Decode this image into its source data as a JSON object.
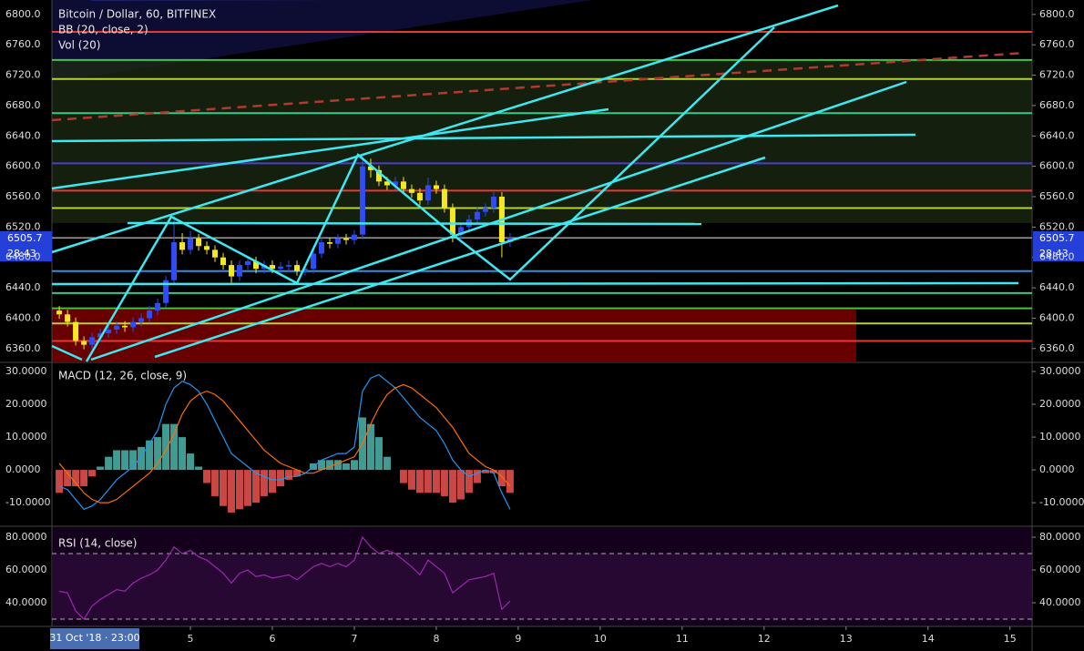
{
  "chart_data": [
    {
      "type": "candlestick",
      "title": "Bitcoin / Dollar, 60, BITFINEX",
      "indicators": [
        "BB (20, close, 2)",
        "Vol (20)"
      ],
      "up_color": "#2f4cf5",
      "down_color": "#f5e820",
      "xlim": [
        3.31,
        15.27
      ],
      "ylim": [
        6343,
        6819
      ],
      "yticks": [
        {
          "value": 6360,
          "label": "6360.0"
        },
        {
          "value": 6400,
          "label": "6400.0"
        },
        {
          "value": 6440,
          "label": "6440.0"
        },
        {
          "value": 6480,
          "label": "6480.0"
        },
        {
          "value": 6520,
          "label": "6520.0"
        },
        {
          "value": 6560,
          "label": "6560.0"
        },
        {
          "value": 6600,
          "label": "6600.0"
        },
        {
          "value": 6640,
          "label": "6640.0"
        },
        {
          "value": 6680,
          "label": "6680.0"
        },
        {
          "value": 6720,
          "label": "6720.0"
        },
        {
          "value": 6760,
          "label": "6760.0"
        },
        {
          "value": 6800,
          "label": "6800.0"
        }
      ],
      "x": [
        3.4,
        3.5,
        3.6,
        3.7,
        3.8,
        3.9,
        4.0,
        4.1,
        4.2,
        4.3,
        4.4,
        4.5,
        4.6,
        4.7,
        4.8,
        4.9,
        5.0,
        5.1,
        5.2,
        5.3,
        5.4,
        5.5,
        5.6,
        5.7,
        5.8,
        5.9,
        6.0,
        6.1,
        6.2,
        6.3,
        6.4,
        6.5,
        6.6,
        6.7,
        6.8,
        6.9,
        7.0,
        7.1,
        7.2,
        7.3,
        7.4,
        7.5,
        7.6,
        7.7,
        7.8,
        7.9,
        8.0,
        8.1,
        8.2,
        8.3,
        8.4,
        8.5,
        8.6,
        8.7,
        8.8,
        8.9
      ],
      "open": [
        6410,
        6405,
        6395,
        6370,
        6365,
        6375,
        6380,
        6385,
        6390,
        6388,
        6395,
        6400,
        6410,
        6420,
        6450,
        6500,
        6490,
        6505,
        6495,
        6490,
        6480,
        6470,
        6455,
        6470,
        6475,
        6465,
        6470,
        6465,
        6468,
        6470,
        6462,
        6465,
        6485,
        6500,
        6498,
        6505,
        6503,
        6510,
        6600,
        6595,
        6580,
        6575,
        6580,
        6570,
        6565,
        6555,
        6575,
        6570,
        6545,
        6510,
        6520,
        6530,
        6540,
        6545,
        6560,
        6500
      ],
      "high": [
        6416,
        6411,
        6401,
        6376,
        6381,
        6386,
        6391,
        6396,
        6396,
        6401,
        6406,
        6416,
        6426,
        6456,
        6535,
        6512,
        6515,
        6511,
        6501,
        6496,
        6486,
        6476,
        6476,
        6481,
        6481,
        6476,
        6476,
        6474,
        6476,
        6476,
        6471,
        6491,
        6506,
        6506,
        6511,
        6511,
        6516,
        6615,
        6610,
        6601,
        6586,
        6586,
        6586,
        6576,
        6571,
        6585,
        6581,
        6576,
        6551,
        6526,
        6536,
        6546,
        6551,
        6566,
        6566,
        6512
      ],
      "low": [
        6399,
        6389,
        6364,
        6359,
        6359,
        6369,
        6374,
        6379,
        6382,
        6382,
        6389,
        6394,
        6404,
        6414,
        6444,
        6484,
        6484,
        6489,
        6484,
        6474,
        6464,
        6445,
        6449,
        6464,
        6459,
        6459,
        6459,
        6459,
        6462,
        6456,
        6456,
        6459,
        6479,
        6492,
        6492,
        6497,
        6497,
        6504,
        6585,
        6574,
        6569,
        6569,
        6564,
        6559,
        6549,
        6549,
        6564,
        6539,
        6500,
        6504,
        6514,
        6524,
        6534,
        6539,
        6480,
        6494
      ],
      "close": [
        6405,
        6395,
        6370,
        6365,
        6375,
        6380,
        6385,
        6390,
        6388,
        6395,
        6400,
        6410,
        6420,
        6450,
        6500,
        6490,
        6505,
        6495,
        6490,
        6480,
        6470,
        6455,
        6470,
        6475,
        6465,
        6470,
        6465,
        6468,
        6470,
        6462,
        6465,
        6485,
        6500,
        6498,
        6505,
        6503,
        6510,
        6600,
        6595,
        6580,
        6575,
        6580,
        6570,
        6565,
        6555,
        6575,
        6570,
        6545,
        6510,
        6520,
        6530,
        6540,
        6545,
        6560,
        6500,
        6505.7
      ],
      "levels": [
        {
          "value": 6777,
          "color": "#e53935"
        },
        {
          "value": 6740,
          "color": "#43c443"
        },
        {
          "value": 6715,
          "color": "#b5d334"
        },
        {
          "value": 6670,
          "color": "#35c98a"
        },
        {
          "value": 6604,
          "color": "#4a3fd0"
        },
        {
          "value": 6568,
          "color": "#e53935"
        },
        {
          "value": 6545,
          "color": "#b5d334"
        },
        {
          "value": 6462,
          "color": "#2f8fe0"
        },
        {
          "value": 6433,
          "color": "#35c98a"
        },
        {
          "value": 6413,
          "color": "#43c443"
        },
        {
          "value": 6393,
          "color": "#b5d334"
        },
        {
          "value": 6370,
          "color": "#e53935"
        }
      ],
      "last_price": 6505.7,
      "countdown": "28:43"
    },
    {
      "type": "macd",
      "title": "MACD (12, 26, close, 9)",
      "xlim": [
        3.31,
        15.27
      ],
      "ylim": [
        -16.9,
        32.5
      ],
      "yticks": [
        {
          "value": -10,
          "label": "-10.0000"
        },
        {
          "value": 0,
          "label": "0.0000"
        },
        {
          "value": 10,
          "label": "10.0000"
        },
        {
          "value": 20,
          "label": "20.0000"
        },
        {
          "value": 30,
          "label": "30.0000"
        }
      ],
      "x": [
        3.4,
        3.5,
        3.6,
        3.7,
        3.8,
        3.9,
        4.0,
        4.1,
        4.2,
        4.3,
        4.4,
        4.5,
        4.6,
        4.7,
        4.8,
        4.9,
        5.0,
        5.1,
        5.2,
        5.3,
        5.4,
        5.5,
        5.6,
        5.7,
        5.8,
        5.9,
        6.0,
        6.1,
        6.2,
        6.3,
        6.4,
        6.5,
        6.6,
        6.7,
        6.8,
        6.9,
        7.0,
        7.1,
        7.2,
        7.3,
        7.4,
        7.5,
        7.6,
        7.7,
        7.8,
        7.9,
        8.0,
        8.1,
        8.2,
        8.3,
        8.4,
        8.5,
        8.6,
        8.7,
        8.8,
        8.9
      ],
      "macd": {
        "color": "#2196f3",
        "values": [
          -5,
          -6,
          -9,
          -12,
          -11,
          -9,
          -6,
          -3,
          -1,
          1,
          4,
          8,
          12,
          20,
          25,
          27,
          26,
          24,
          20,
          15,
          10,
          5,
          3,
          1,
          -1,
          -2,
          -3,
          -3,
          -2,
          -2,
          -1,
          1,
          3,
          4,
          5,
          5,
          7,
          24,
          28,
          29,
          27,
          25,
          22,
          19,
          16,
          14,
          12,
          8,
          3,
          0,
          -2,
          -1,
          0,
          -1,
          -7,
          -12
        ]
      },
      "signal": {
        "color": "#ff6d00",
        "values": [
          2,
          -1,
          -4,
          -7,
          -9,
          -10,
          -10,
          -9,
          -7,
          -5,
          -3,
          -1,
          2,
          6,
          11,
          17,
          21,
          23,
          24,
          23,
          21,
          18,
          15,
          12,
          9,
          6,
          4,
          2,
          1,
          0,
          -1,
          -1,
          0,
          1,
          2,
          3,
          4,
          8,
          14,
          19,
          23,
          25,
          26,
          25,
          23,
          21,
          19,
          16,
          13,
          9,
          5,
          3,
          1,
          0,
          -2,
          -5
        ]
      },
      "histogram": {
        "color": "#4db6ac",
        "negative_color": "#ef5350",
        "values": [
          -7,
          -5,
          -5,
          -5,
          -2,
          1,
          4,
          6,
          6,
          6,
          7,
          9,
          10,
          14,
          14,
          10,
          5,
          1,
          -4,
          -8,
          -11,
          -13,
          -12,
          -11,
          -10,
          -8,
          -7,
          -5,
          -3,
          -2,
          0,
          2,
          3,
          3,
          3,
          2,
          3,
          16,
          14,
          10,
          4,
          0,
          -4,
          -6,
          -7,
          -7,
          -7,
          -8,
          -10,
          -9,
          -7,
          -4,
          -1,
          -1,
          -5,
          -7
        ]
      }
    },
    {
      "type": "rsi",
      "title": "RSI (14, close)",
      "color": "#9c27b0",
      "xlim": [
        3.31,
        15.27
      ],
      "ylim": [
        25.56,
        86.1
      ],
      "yticks": [
        {
          "value": 40,
          "label": "40.0000"
        },
        {
          "value": 60,
          "label": "60.0000"
        },
        {
          "value": 80,
          "label": "80.0000"
        }
      ],
      "upper_band": 70,
      "lower_band": 30,
      "xticks": [
        5,
        6,
        7,
        8,
        9,
        10,
        11,
        12,
        13,
        14,
        15
      ],
      "x": [
        3.4,
        3.5,
        3.6,
        3.7,
        3.8,
        3.9,
        4.0,
        4.1,
        4.2,
        4.3,
        4.4,
        4.5,
        4.6,
        4.7,
        4.8,
        4.9,
        5.0,
        5.1,
        5.2,
        5.3,
        5.4,
        5.5,
        5.6,
        5.7,
        5.8,
        5.9,
        6.0,
        6.1,
        6.2,
        6.3,
        6.4,
        6.5,
        6.6,
        6.7,
        6.8,
        6.9,
        7.0,
        7.1,
        7.2,
        7.3,
        7.4,
        7.5,
        7.6,
        7.7,
        7.8,
        7.9,
        8.0,
        8.1,
        8.2,
        8.3,
        8.4,
        8.5,
        8.6,
        8.7,
        8.8,
        8.9
      ],
      "values": [
        47,
        46,
        35,
        30,
        38,
        42,
        45,
        48,
        47,
        52,
        55,
        57,
        60,
        66,
        74,
        70,
        72,
        68,
        66,
        62,
        58,
        52,
        58,
        60,
        56,
        57,
        55,
        56,
        57,
        54,
        58,
        62,
        64,
        62,
        64,
        62,
        66,
        80,
        74,
        70,
        72,
        70,
        66,
        62,
        57,
        66,
        62,
        58,
        46,
        50,
        54,
        55,
        56,
        58,
        36,
        41
      ],
      "cursor_label": "31 Oct '18 · 23:00"
    }
  ]
}
